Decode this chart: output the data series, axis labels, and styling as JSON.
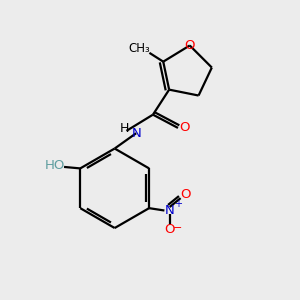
{
  "bg_color": "#ececec",
  "atom_colors": {
    "O": "#ff0000",
    "N": "#0000cd",
    "O_teal": "#5f9ea0"
  },
  "figsize": [
    3.0,
    3.0
  ],
  "dpi": 100,
  "xlim": [
    0,
    10
  ],
  "ylim": [
    0,
    10
  ],
  "bond_lw": 1.6,
  "font_size_atom": 9.5,
  "font_size_small": 8.5
}
